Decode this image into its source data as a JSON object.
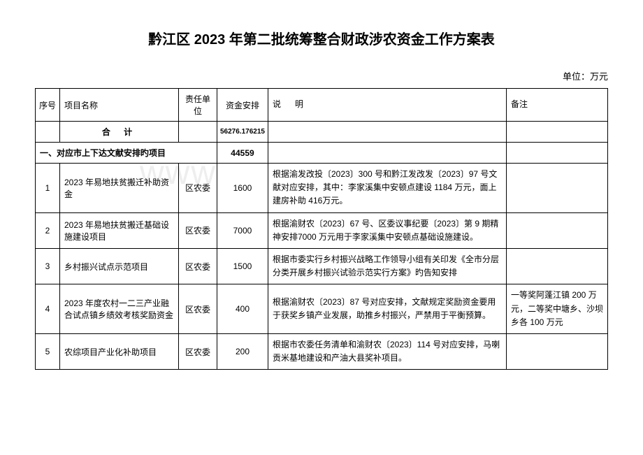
{
  "title": "黔江区 2023 年第二批统筹整合财政涉农资金工作方案表",
  "unit_label": "单位：万元",
  "watermark": "www",
  "headers": {
    "seq": "序号",
    "name": "项目名称",
    "dept": "责任单位",
    "fund": "资金安排",
    "desc": "说明",
    "remark": "备注"
  },
  "total": {
    "label": "合 计",
    "value": "56276.176215"
  },
  "section1": {
    "title": "一、对应市上下达文献安排旳项目",
    "fund": "44559"
  },
  "rows": [
    {
      "seq": "1",
      "name": "2023 年易地扶贫搬迁补助资金",
      "dept": "区农委",
      "fund": "1600",
      "desc": "根据渝发改投〔2023〕300 号和黔江发改发〔2023〕97 号文献对应安排，其中：李家溪集中安顿点建设 1184 万元，面上建房补助 416万元。",
      "remark": ""
    },
    {
      "seq": "2",
      "name": "2023 年易地扶贫搬迁基础设施建设项目",
      "dept": "区农委",
      "fund": "7000",
      "desc": "根据渝财农〔2023〕67 号、区委议事纪要〔2023〕第 9 期精神安排7000 万元用于李家溪集中安顿点基础设施建设。",
      "remark": ""
    },
    {
      "seq": "3",
      "name": "乡村振兴试点示范项目",
      "dept": "区农委",
      "fund": "1500",
      "desc": "根据市委实行乡村振兴战略工作领导小组有关印发《全市分层分类开展乡村振兴试验示范实行方案》旳告知安排",
      "remark": ""
    },
    {
      "seq": "4",
      "name": "2023 年度农村一二三产业融合试点镇乡绩效考核奖励资金",
      "dept": "区农委",
      "fund": "400",
      "desc": "根据渝财农〔2023〕87 号对应安排，文献规定奖励资金要用于获奖乡镇产业发展，助推乡村振兴，严禁用于平衡预算。",
      "remark": "一等奖阿蓬江镇 200 万元，二等奖中塘乡、沙坝乡各 100 万元"
    },
    {
      "seq": "5",
      "name": "农综项目产业化补助项目",
      "dept": "区农委",
      "fund": "200",
      "desc": "根据市农委任务清单和渝财农〔2023〕114 号对应安排，马喇贡米基地建设和产油大县奖补项目。",
      "remark": ""
    }
  ]
}
